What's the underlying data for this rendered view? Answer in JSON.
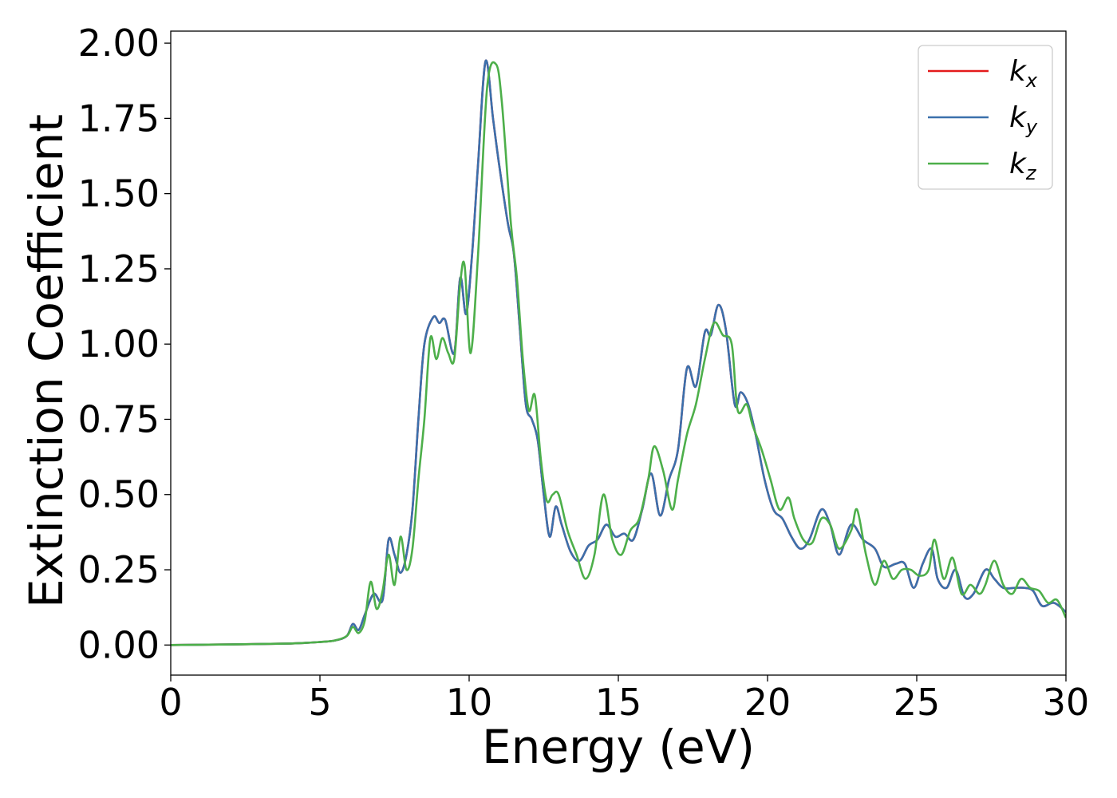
{
  "chart_data": {
    "type": "line",
    "xlabel": "Energy (eV)",
    "ylabel": "Extinction Coefficient",
    "xlim": [
      0,
      30
    ],
    "ylim": [
      -0.1,
      2.04
    ],
    "xticks": [
      0,
      5,
      10,
      15,
      20,
      25,
      30
    ],
    "yticks": [
      0.0,
      0.25,
      0.5,
      0.75,
      1.0,
      1.25,
      1.5,
      1.75,
      2.0
    ],
    "xtick_labels": [
      "0",
      "5",
      "10",
      "15",
      "20",
      "25",
      "30"
    ],
    "ytick_labels": [
      "0.00",
      "0.25",
      "0.50",
      "0.75",
      "1.00",
      "1.25",
      "1.50",
      "1.75",
      "2.00"
    ],
    "grid": false,
    "legend_position": "top-right",
    "series": [
      {
        "name": "k",
        "subscript": "x",
        "color": "#e41a1c",
        "x": [
          0,
          2,
          4,
          5,
          5.5,
          5.9,
          6.1,
          6.3,
          6.5,
          6.8,
          7.1,
          7.3,
          7.5,
          7.7,
          7.9,
          8.1,
          8.3,
          8.5,
          8.8,
          9.0,
          9.2,
          9.5,
          9.7,
          9.9,
          10.1,
          10.3,
          10.55,
          10.8,
          11.0,
          11.3,
          11.5,
          11.7,
          11.9,
          12.1,
          12.3,
          12.5,
          12.7,
          12.9,
          13.1,
          13.4,
          13.7,
          14.0,
          14.3,
          14.6,
          14.9,
          15.2,
          15.5,
          15.8,
          16.1,
          16.4,
          16.7,
          17.0,
          17.3,
          17.6,
          17.9,
          18.1,
          18.35,
          18.6,
          18.9,
          19.1,
          19.35,
          19.6,
          19.9,
          20.2,
          20.5,
          20.8,
          21.1,
          21.4,
          21.8,
          22.1,
          22.4,
          22.8,
          23.2,
          23.6,
          23.9,
          24.3,
          24.6,
          24.9,
          25.2,
          25.5,
          25.7,
          26.0,
          26.3,
          26.6,
          26.9,
          27.3,
          27.6,
          27.9,
          28.3,
          28.6,
          28.9,
          29.2,
          29.6,
          30
        ],
        "y": [
          0.0,
          0.002,
          0.005,
          0.01,
          0.015,
          0.03,
          0.07,
          0.05,
          0.1,
          0.17,
          0.15,
          0.35,
          0.3,
          0.24,
          0.3,
          0.45,
          0.75,
          1.0,
          1.09,
          1.07,
          1.08,
          0.97,
          1.22,
          1.1,
          1.3,
          1.6,
          1.94,
          1.75,
          1.6,
          1.4,
          1.3,
          1.05,
          0.8,
          0.75,
          0.68,
          0.5,
          0.36,
          0.46,
          0.4,
          0.31,
          0.28,
          0.33,
          0.35,
          0.4,
          0.36,
          0.37,
          0.35,
          0.45,
          0.57,
          0.43,
          0.55,
          0.65,
          0.92,
          0.86,
          1.04,
          1.03,
          1.13,
          1.05,
          0.8,
          0.84,
          0.8,
          0.7,
          0.55,
          0.45,
          0.42,
          0.36,
          0.32,
          0.35,
          0.45,
          0.4,
          0.3,
          0.4,
          0.35,
          0.32,
          0.26,
          0.27,
          0.27,
          0.19,
          0.27,
          0.32,
          0.22,
          0.19,
          0.25,
          0.16,
          0.17,
          0.25,
          0.22,
          0.19,
          0.19,
          0.19,
          0.18,
          0.13,
          0.14,
          0.11
        ]
      },
      {
        "name": "k",
        "subscript": "y",
        "color": "#3b70ac",
        "x": [
          0,
          2,
          4,
          5,
          5.5,
          5.9,
          6.1,
          6.3,
          6.5,
          6.8,
          7.1,
          7.3,
          7.5,
          7.7,
          7.9,
          8.1,
          8.3,
          8.5,
          8.8,
          9.0,
          9.2,
          9.5,
          9.7,
          9.9,
          10.1,
          10.3,
          10.55,
          10.8,
          11.0,
          11.3,
          11.5,
          11.7,
          11.9,
          12.1,
          12.3,
          12.5,
          12.7,
          12.9,
          13.1,
          13.4,
          13.7,
          14.0,
          14.3,
          14.6,
          14.9,
          15.2,
          15.5,
          15.8,
          16.1,
          16.4,
          16.7,
          17.0,
          17.3,
          17.6,
          17.9,
          18.1,
          18.35,
          18.6,
          18.9,
          19.1,
          19.35,
          19.6,
          19.9,
          20.2,
          20.5,
          20.8,
          21.1,
          21.4,
          21.8,
          22.1,
          22.4,
          22.8,
          23.2,
          23.6,
          23.9,
          24.3,
          24.6,
          24.9,
          25.2,
          25.5,
          25.7,
          26.0,
          26.3,
          26.6,
          26.9,
          27.3,
          27.6,
          27.9,
          28.3,
          28.6,
          28.9,
          29.2,
          29.6,
          30
        ],
        "y": [
          0.0,
          0.002,
          0.005,
          0.01,
          0.015,
          0.03,
          0.07,
          0.05,
          0.1,
          0.17,
          0.15,
          0.35,
          0.3,
          0.24,
          0.3,
          0.45,
          0.75,
          1.0,
          1.09,
          1.07,
          1.08,
          0.97,
          1.22,
          1.1,
          1.3,
          1.6,
          1.94,
          1.75,
          1.6,
          1.4,
          1.3,
          1.05,
          0.8,
          0.75,
          0.68,
          0.5,
          0.36,
          0.46,
          0.4,
          0.31,
          0.28,
          0.33,
          0.35,
          0.4,
          0.36,
          0.37,
          0.35,
          0.45,
          0.57,
          0.43,
          0.55,
          0.65,
          0.92,
          0.86,
          1.04,
          1.03,
          1.13,
          1.05,
          0.8,
          0.84,
          0.8,
          0.7,
          0.55,
          0.45,
          0.42,
          0.36,
          0.32,
          0.35,
          0.45,
          0.4,
          0.3,
          0.4,
          0.35,
          0.32,
          0.26,
          0.27,
          0.27,
          0.19,
          0.27,
          0.32,
          0.22,
          0.19,
          0.25,
          0.16,
          0.17,
          0.25,
          0.22,
          0.19,
          0.19,
          0.19,
          0.18,
          0.13,
          0.14,
          0.11
        ]
      },
      {
        "name": "k",
        "subscript": "z",
        "color": "#4daf4a",
        "x": [
          0,
          2,
          4,
          5,
          5.5,
          5.9,
          6.1,
          6.3,
          6.5,
          6.7,
          6.9,
          7.1,
          7.3,
          7.5,
          7.7,
          7.9,
          8.1,
          8.3,
          8.5,
          8.7,
          8.9,
          9.1,
          9.3,
          9.5,
          9.7,
          9.85,
          10.05,
          10.3,
          10.6,
          10.9,
          11.1,
          11.4,
          11.6,
          11.8,
          12.0,
          12.2,
          12.4,
          12.6,
          12.8,
          13.0,
          13.3,
          13.6,
          13.9,
          14.2,
          14.5,
          14.8,
          15.1,
          15.4,
          15.7,
          16.0,
          16.2,
          16.5,
          16.8,
          17.0,
          17.3,
          17.6,
          17.9,
          18.2,
          18.5,
          18.8,
          19.0,
          19.3,
          19.5,
          19.8,
          20.1,
          20.4,
          20.7,
          20.9,
          21.2,
          21.5,
          21.8,
          22.1,
          22.4,
          22.8,
          23.0,
          23.3,
          23.6,
          23.9,
          24.2,
          24.5,
          24.8,
          25.1,
          25.4,
          25.6,
          25.9,
          26.2,
          26.5,
          26.8,
          27.1,
          27.3,
          27.6,
          27.9,
          28.2,
          28.5,
          28.8,
          29.1,
          29.4,
          29.7,
          30
        ],
        "y": [
          0.0,
          0.002,
          0.005,
          0.01,
          0.015,
          0.03,
          0.06,
          0.04,
          0.08,
          0.21,
          0.12,
          0.18,
          0.3,
          0.2,
          0.36,
          0.25,
          0.32,
          0.55,
          0.75,
          1.02,
          0.95,
          1.02,
          0.97,
          0.95,
          1.2,
          1.26,
          0.97,
          1.3,
          1.85,
          1.93,
          1.8,
          1.4,
          1.22,
          0.95,
          0.78,
          0.83,
          0.62,
          0.48,
          0.5,
          0.5,
          0.38,
          0.3,
          0.22,
          0.3,
          0.5,
          0.35,
          0.3,
          0.38,
          0.42,
          0.55,
          0.66,
          0.58,
          0.45,
          0.55,
          0.7,
          0.8,
          0.95,
          1.07,
          1.03,
          1.0,
          0.78,
          0.8,
          0.73,
          0.65,
          0.55,
          0.45,
          0.49,
          0.42,
          0.35,
          0.34,
          0.42,
          0.4,
          0.32,
          0.38,
          0.45,
          0.3,
          0.2,
          0.28,
          0.22,
          0.25,
          0.25,
          0.23,
          0.25,
          0.35,
          0.22,
          0.29,
          0.17,
          0.2,
          0.17,
          0.2,
          0.28,
          0.2,
          0.17,
          0.22,
          0.19,
          0.18,
          0.14,
          0.15,
          0.09
        ]
      }
    ]
  }
}
